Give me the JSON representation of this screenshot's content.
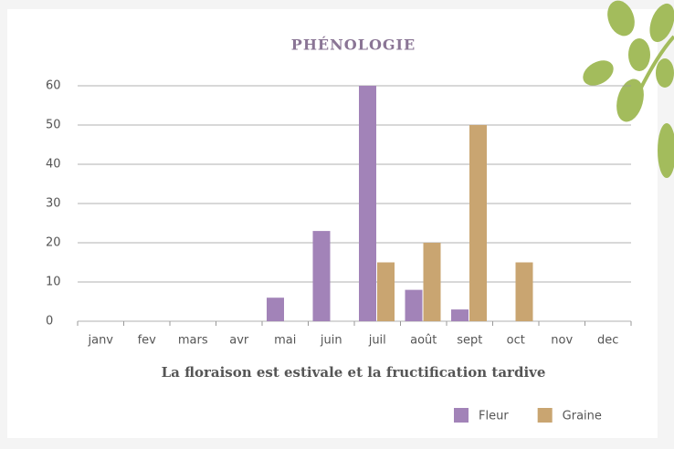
{
  "chart_data": {
    "type": "bar",
    "title": "PHÉNOLOGIE",
    "subtitle": "La floraison est estivale et la fructification tardive",
    "categories": [
      "janv",
      "fev",
      "mars",
      "avr",
      "mai",
      "juin",
      "juil",
      "août",
      "sept",
      "oct",
      "nov",
      "dec"
    ],
    "series": [
      {
        "name": "Fleur",
        "color": "#a283b8",
        "values": [
          0,
          0,
          0,
          0,
          6,
          23,
          60,
          8,
          3,
          0,
          0,
          0
        ]
      },
      {
        "name": "Graine",
        "color": "#c9a571",
        "values": [
          0,
          0,
          0,
          0,
          0,
          0,
          15,
          20,
          50,
          15,
          0,
          0
        ]
      }
    ],
    "ylim": [
      0,
      60
    ],
    "yticks": [
      0,
      10,
      20,
      30,
      40,
      50,
      60
    ],
    "grid": true,
    "legend": "bottom-right"
  }
}
